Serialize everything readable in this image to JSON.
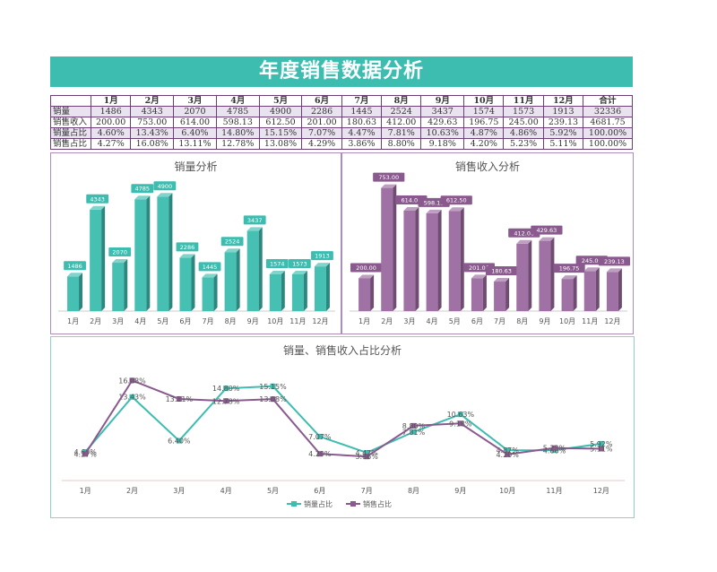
{
  "title": "年度销售数据分析",
  "table": {
    "headers": [
      "",
      "1月",
      "2月",
      "3月",
      "4月",
      "5月",
      "6月",
      "7月",
      "8月",
      "9月",
      "10月",
      "11月",
      "12月",
      "合计"
    ],
    "rows": [
      {
        "label": "销量",
        "cells": [
          "1486",
          "4343",
          "2070",
          "4785",
          "4900",
          "2286",
          "1445",
          "2524",
          "3437",
          "1574",
          "1573",
          "1913",
          "32336"
        ]
      },
      {
        "label": "销售收入",
        "cells": [
          "200.00",
          "753.00",
          "614.00",
          "598.13",
          "612.50",
          "201.00",
          "180.63",
          "412.00",
          "429.63",
          "196.75",
          "245.00",
          "239.13",
          "4681.75"
        ]
      },
      {
        "label": "销量占比",
        "cells": [
          "4.60%",
          "13.43%",
          "6.40%",
          "14.80%",
          "15.15%",
          "7.07%",
          "4.47%",
          "7.81%",
          "10.63%",
          "4.87%",
          "4.86%",
          "5.92%",
          "100.00%"
        ]
      },
      {
        "label": "销售占比",
        "cells": [
          "4.27%",
          "16.08%",
          "13.11%",
          "12.78%",
          "13.08%",
          "4.29%",
          "3.86%",
          "8.80%",
          "9.18%",
          "4.20%",
          "5.23%",
          "5.11%",
          "100.00%"
        ]
      }
    ]
  },
  "colors": {
    "teal": "#3dbdb0",
    "purple": "#9b6a9f",
    "teal_label_bg": "#3dbdb0",
    "purple_label_bg": "#8a5a8f"
  },
  "chart_data": [
    {
      "type": "bar",
      "title": "销量分析",
      "categories": [
        "1月",
        "2月",
        "3月",
        "4月",
        "5月",
        "6月",
        "7月",
        "8月",
        "9月",
        "10月",
        "11月",
        "12月"
      ],
      "values": [
        1486,
        4343,
        2070,
        4785,
        4900,
        2286,
        1445,
        2524,
        3437,
        1574,
        1573,
        1913
      ],
      "value_labels": [
        "1486",
        "4343",
        "2070",
        "4785",
        "4900",
        "2286",
        "1445",
        "2524",
        "3437",
        "1574",
        "1573",
        "1913"
      ],
      "ylim": [
        0,
        5600
      ],
      "color": "#3dbdb0",
      "grid": false
    },
    {
      "type": "bar",
      "title": "销售收入分析",
      "categories": [
        "1月",
        "2月",
        "3月",
        "4月",
        "5月",
        "6月",
        "7月",
        "8月",
        "9月",
        "10月",
        "11月",
        "12月"
      ],
      "values": [
        200.0,
        753.0,
        614.0,
        598.13,
        612.5,
        201.0,
        180.63,
        412.0,
        429.63,
        196.75,
        245.0,
        239.13
      ],
      "value_labels": [
        "200.00",
        "753.00",
        "614.00",
        "598.13",
        "612.50",
        "201.00",
        "180.63",
        "412.00",
        "429.63",
        "196.75",
        "245.00",
        "239.13"
      ],
      "ylim": [
        0,
        800
      ],
      "color": "#9b6a9f",
      "grid": false
    },
    {
      "type": "line",
      "title": "销量、销售收入占比分析",
      "categories": [
        "1月",
        "2月",
        "3月",
        "4月",
        "5月",
        "6月",
        "7月",
        "8月",
        "9月",
        "10月",
        "11月",
        "12月"
      ],
      "series": [
        {
          "name": "销量占比",
          "values": [
            4.6,
            13.43,
            6.4,
            14.8,
            15.15,
            7.07,
            4.47,
            7.81,
            10.63,
            4.87,
            4.86,
            5.92
          ],
          "labels": [
            "4.60%",
            "13.43%",
            "6.40%",
            "14.80%",
            "15.15%",
            "7.07%",
            "4.47%",
            "7.81%",
            "10.63%",
            "4.87%",
            "4.86%",
            "5.92%"
          ],
          "color": "#3dbdb0"
        },
        {
          "name": "销售占比",
          "values": [
            4.27,
            16.08,
            13.11,
            12.78,
            13.08,
            4.29,
            3.86,
            8.8,
            9.18,
            4.2,
            5.23,
            5.11
          ],
          "labels": [
            "4.27%",
            "16.08%",
            "13.11%",
            "12.78%",
            "13.08%",
            "4.29%",
            "3.86%",
            "8.80%",
            "9.18%",
            "4.20%",
            "5.23%",
            "5.11%"
          ],
          "color": "#8a5a8f"
        }
      ],
      "ylim": [
        0,
        18
      ],
      "legend": "bottom",
      "grid": false
    }
  ]
}
